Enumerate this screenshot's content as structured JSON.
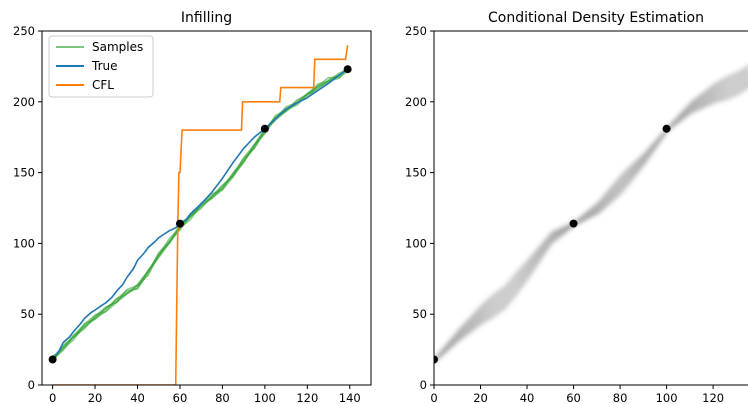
{
  "chart_data": [
    {
      "type": "line",
      "title": "Infilling",
      "xlabel": "",
      "ylabel": "",
      "xlim": [
        -5,
        150
      ],
      "ylim": [
        0,
        250
      ],
      "x_ticks": [
        "0",
        "20",
        "40",
        "60",
        "80",
        "100",
        "120",
        "140"
      ],
      "y_ticks": [
        "0",
        "50",
        "100",
        "150",
        "200",
        "250"
      ],
      "grid": false,
      "legend": {
        "position": "top-left",
        "entries": [
          "Samples",
          "True",
          "CFL"
        ]
      },
      "series": [
        {
          "name": "Samples",
          "color": "#2ca02c",
          "x": [
            0,
            5,
            10,
            15,
            20,
            25,
            30,
            35,
            40,
            45,
            50,
            55,
            60,
            65,
            70,
            75,
            80,
            85,
            90,
            95,
            100,
            105,
            110,
            115,
            120,
            125,
            130,
            135,
            139
          ],
          "y": [
            18,
            27,
            34,
            41,
            48,
            54,
            59,
            65,
            70,
            80,
            91,
            101,
            112,
            119,
            126,
            133,
            140,
            148,
            158,
            169,
            180,
            188,
            194,
            200,
            205,
            210,
            215,
            219,
            223
          ]
        },
        {
          "name": "True",
          "color": "#1f77b4",
          "x": [
            0,
            3,
            5,
            8,
            10,
            13,
            15,
            18,
            20,
            23,
            25,
            28,
            30,
            33,
            35,
            38,
            40,
            43,
            45,
            48,
            50,
            53,
            55,
            58,
            60,
            63,
            65,
            70,
            75,
            80,
            85,
            90,
            95,
            100,
            105,
            110,
            115,
            120,
            125,
            130,
            135,
            139
          ],
          "y": [
            18,
            24,
            30,
            34,
            38,
            43,
            47,
            51,
            53,
            56,
            58,
            62,
            66,
            71,
            76,
            82,
            88,
            93,
            97,
            101,
            104,
            107,
            109,
            111,
            114,
            117,
            121,
            128,
            136,
            146,
            157,
            167,
            175,
            181,
            188,
            195,
            199,
            203,
            208,
            213,
            219,
            223
          ]
        },
        {
          "name": "CFL",
          "color": "#ff7f0e",
          "x": [
            0,
            58,
            59,
            59.5,
            60,
            60.5,
            61,
            89,
            89.5,
            107,
            107.5,
            123,
            123.5,
            138,
            139
          ],
          "y": [
            0,
            0,
            113,
            150,
            150,
            165,
            180,
            180,
            200,
            200,
            210,
            210,
            230,
            230,
            240
          ]
        }
      ],
      "observed_points": {
        "x": [
          0,
          60,
          100,
          139
        ],
        "y": [
          18,
          114,
          181,
          223
        ]
      }
    },
    {
      "type": "heatmap",
      "title": "Conditional Density Estimation",
      "xlabel": "",
      "ylabel": "",
      "xlim": [
        0,
        135
      ],
      "ylim": [
        0,
        250
      ],
      "x_ticks": [
        "0",
        "20",
        "40",
        "60",
        "80",
        "100",
        "120"
      ],
      "y_ticks": [
        "0",
        "50",
        "100",
        "150",
        "200",
        "250"
      ],
      "colormap": "Greys",
      "density_ridge": {
        "x": [
          0,
          10,
          20,
          30,
          40,
          50,
          60,
          70,
          80,
          90,
          100,
          110,
          120,
          130,
          135
        ],
        "y": [
          18,
          35,
          50,
          62,
          82,
          104,
          114,
          125,
          142,
          160,
          181,
          196,
          206,
          213,
          218
        ]
      },
      "observed_points": {
        "x": [
          0,
          60,
          100
        ],
        "y": [
          18,
          114,
          181
        ]
      }
    }
  ]
}
